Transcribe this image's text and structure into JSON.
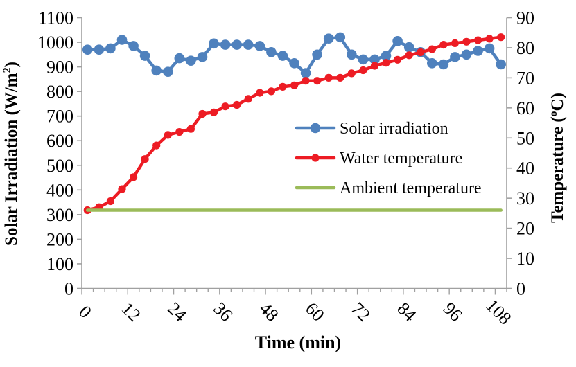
{
  "chart_data": {
    "type": "line",
    "x": [
      0,
      3,
      6,
      9,
      12,
      15,
      18,
      21,
      24,
      27,
      30,
      33,
      36,
      39,
      42,
      45,
      48,
      51,
      54,
      57,
      60,
      63,
      66,
      69,
      72,
      75,
      78,
      81,
      84,
      87,
      90,
      93,
      96,
      99,
      102,
      105,
      108
    ],
    "x_axis": {
      "label": "Time (min)",
      "major_tick_labels": [
        "0",
        "12",
        "24",
        "36",
        "48",
        "60",
        "72",
        "84",
        "96",
        "108"
      ],
      "label_every_n_points": 4,
      "tick_label_rotation_deg": 45
    },
    "left_axis": {
      "label_parts": [
        {
          "t": "Solar Irradiation (W/m"
        },
        {
          "sup": "2"
        },
        {
          "t": ")"
        }
      ],
      "label_text": "Solar Irradiation (W/m2)",
      "min": 0,
      "max": 1100,
      "step": 100,
      "tick_labels": [
        "0",
        "100",
        "200",
        "300",
        "400",
        "500",
        "600",
        "700",
        "800",
        "900",
        "1000",
        "1100"
      ]
    },
    "right_axis": {
      "label_parts": [
        {
          "t": "Temperature ("
        },
        {
          "sup": "o"
        },
        {
          "t": "C)"
        }
      ],
      "label_text": "Temperature (oC)",
      "min": 0,
      "max": 90,
      "step": 10,
      "tick_labels": [
        "0",
        "10",
        "20",
        "30",
        "40",
        "50",
        "60",
        "70",
        "80",
        "90"
      ]
    },
    "series": [
      {
        "name": "Solar irradiation",
        "axis": "left",
        "color": "#4F81BD",
        "marker": "circle",
        "values": [
          970,
          970,
          975,
          1010,
          985,
          945,
          885,
          880,
          935,
          925,
          940,
          995,
          990,
          990,
          990,
          985,
          960,
          945,
          915,
          875,
          950,
          1015,
          1020,
          950,
          930,
          930,
          945,
          1005,
          980,
          960,
          915,
          910,
          940,
          950,
          965,
          975,
          910
        ]
      },
      {
        "name": "Water temperature",
        "axis": "right",
        "color": "#ED1C24",
        "marker": "circle",
        "values": [
          26,
          27,
          29,
          33,
          37,
          43,
          47.5,
          51,
          52,
          53,
          58,
          58.5,
          60.5,
          61,
          63,
          65,
          65.5,
          67,
          67.5,
          69,
          69,
          70,
          70,
          71.5,
          72.5,
          74,
          75,
          76,
          77.5,
          78.5,
          79.5,
          81,
          81.5,
          82,
          82.5,
          83,
          83.5
        ]
      },
      {
        "name": "Ambient temperature",
        "axis": "right",
        "color": "#9BBB59",
        "marker": "none",
        "constant_value": 26
      }
    ],
    "legend": {
      "position": "center-right-inside-plot",
      "entries": [
        "Solar irradiation",
        "Water temperature",
        "Ambient temperature"
      ]
    },
    "grid": "off",
    "axis_line_color": "#A0A0A0",
    "text_color": "#000000",
    "background": "#FFFFFF"
  }
}
